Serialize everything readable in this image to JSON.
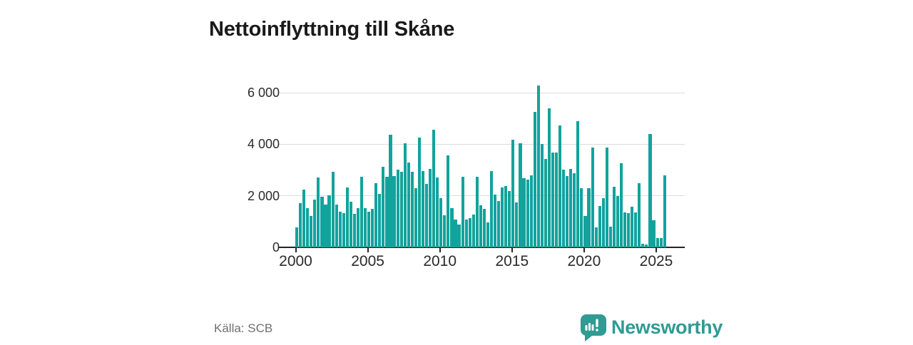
{
  "header": {
    "title": "Nettoinflyttning till Skåne"
  },
  "footer": {
    "source": "Källa: SCB",
    "brand_name": "Newsworthy"
  },
  "colors": {
    "bar": "#12a39c",
    "brand": "#2f9b93",
    "axis_text": "#2b2b2b",
    "grid": "#dcdcdc",
    "muted_text": "#6f6f6f"
  },
  "chart_data": {
    "type": "bar",
    "title": "Nettoinflyttning till Skåne",
    "xlabel": "",
    "ylabel": "",
    "x_unit": "quarter",
    "start_period": "2000 Q1",
    "end_period": "2025 Q3",
    "ylim": [
      0,
      6400
    ],
    "grid": true,
    "legend": "none",
    "y_ticks": [
      0,
      2000,
      4000,
      6000
    ],
    "y_tick_labels": [
      "0",
      "2 000",
      "4 000",
      "6 000"
    ],
    "x_tick_years": [
      2000,
      2005,
      2010,
      2015,
      2020,
      2025
    ],
    "x_tick_labels": [
      "2000",
      "2005",
      "2010",
      "2015",
      "2020",
      "2025"
    ],
    "series": [
      {
        "name": "Nettoinflyttning till Skåne",
        "values": [
          780,
          1720,
          2230,
          1520,
          1230,
          1860,
          2700,
          1950,
          1670,
          2020,
          2940,
          1650,
          1380,
          1320,
          2330,
          1760,
          1290,
          1520,
          2730,
          1530,
          1370,
          1480,
          2490,
          2070,
          3120,
          2730,
          4370,
          2770,
          3010,
          2920,
          4050,
          3290,
          2920,
          2290,
          4260,
          2970,
          2460,
          3030,
          4570,
          2720,
          1920,
          1250,
          3570,
          1530,
          1070,
          880,
          2750,
          1090,
          1140,
          1270,
          2740,
          1620,
          1490,
          980,
          2960,
          2040,
          1810,
          2320,
          2390,
          2180,
          4170,
          1730,
          4050,
          2690,
          2630,
          2780,
          5240,
          6290,
          4010,
          3430,
          5380,
          3670,
          3670,
          4720,
          3010,
          2760,
          3030,
          2870,
          4890,
          2300,
          1220,
          2300,
          3870,
          770,
          1600,
          1900,
          3870,
          800,
          2350,
          1990,
          3270,
          1360,
          1330,
          1570,
          1350,
          2500,
          150,
          100,
          4400,
          1050,
          350,
          350,
          2780
        ]
      }
    ]
  }
}
